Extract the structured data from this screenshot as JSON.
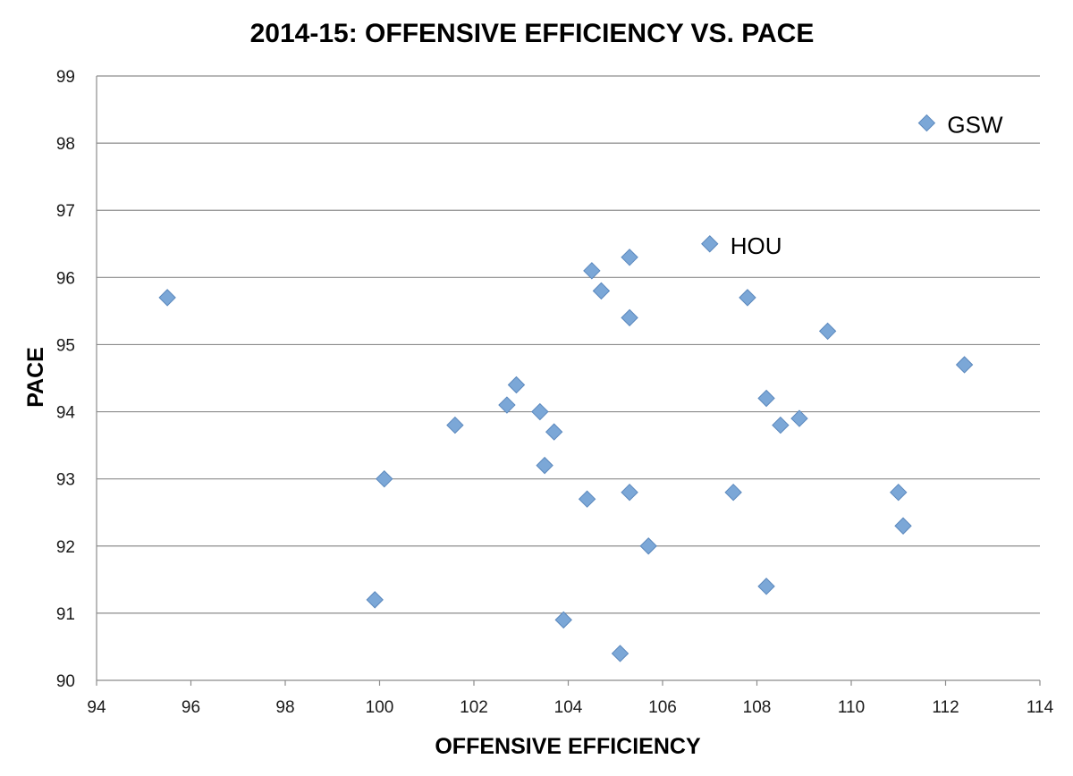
{
  "chart_data": {
    "type": "scatter",
    "title": "2014-15: OFFENSIVE EFFICIENCY VS. PACE",
    "xlabel": "OFFENSIVE EFFICIENCY",
    "ylabel": "PACE",
    "xlim": [
      94,
      114
    ],
    "ylim": [
      90,
      99
    ],
    "xticks": [
      "94",
      "96",
      "98",
      "100",
      "102",
      "104",
      "106",
      "108",
      "110",
      "112",
      "114"
    ],
    "yticks": [
      "90",
      "91",
      "92",
      "93",
      "94",
      "95",
      "96",
      "97",
      "98",
      "99"
    ],
    "grid": "horizontal",
    "marker": "diamond",
    "marker_color": "#7ba7d7",
    "points": [
      {
        "x": 95.5,
        "y": 95.7
      },
      {
        "x": 99.9,
        "y": 91.2
      },
      {
        "x": 100.1,
        "y": 93.0
      },
      {
        "x": 101.6,
        "y": 93.8
      },
      {
        "x": 102.7,
        "y": 94.1
      },
      {
        "x": 102.9,
        "y": 94.4
      },
      {
        "x": 103.4,
        "y": 94.0
      },
      {
        "x": 103.5,
        "y": 93.2
      },
      {
        "x": 103.7,
        "y": 93.7
      },
      {
        "x": 103.9,
        "y": 90.9
      },
      {
        "x": 104.4,
        "y": 92.7
      },
      {
        "x": 104.5,
        "y": 96.1
      },
      {
        "x": 104.7,
        "y": 95.8
      },
      {
        "x": 105.1,
        "y": 90.4
      },
      {
        "x": 105.3,
        "y": 96.3
      },
      {
        "x": 105.3,
        "y": 95.4
      },
      {
        "x": 105.3,
        "y": 92.8
      },
      {
        "x": 105.7,
        "y": 92.0
      },
      {
        "x": 107.0,
        "y": 96.5,
        "label": "HOU"
      },
      {
        "x": 107.5,
        "y": 92.8
      },
      {
        "x": 107.8,
        "y": 95.7
      },
      {
        "x": 108.2,
        "y": 94.2
      },
      {
        "x": 108.2,
        "y": 91.4
      },
      {
        "x": 108.5,
        "y": 93.8
      },
      {
        "x": 108.9,
        "y": 93.9
      },
      {
        "x": 109.5,
        "y": 95.2
      },
      {
        "x": 111.0,
        "y": 92.8
      },
      {
        "x": 111.1,
        "y": 92.3
      },
      {
        "x": 111.6,
        "y": 98.3,
        "label": "GSW"
      },
      {
        "x": 112.4,
        "y": 94.7
      }
    ]
  }
}
